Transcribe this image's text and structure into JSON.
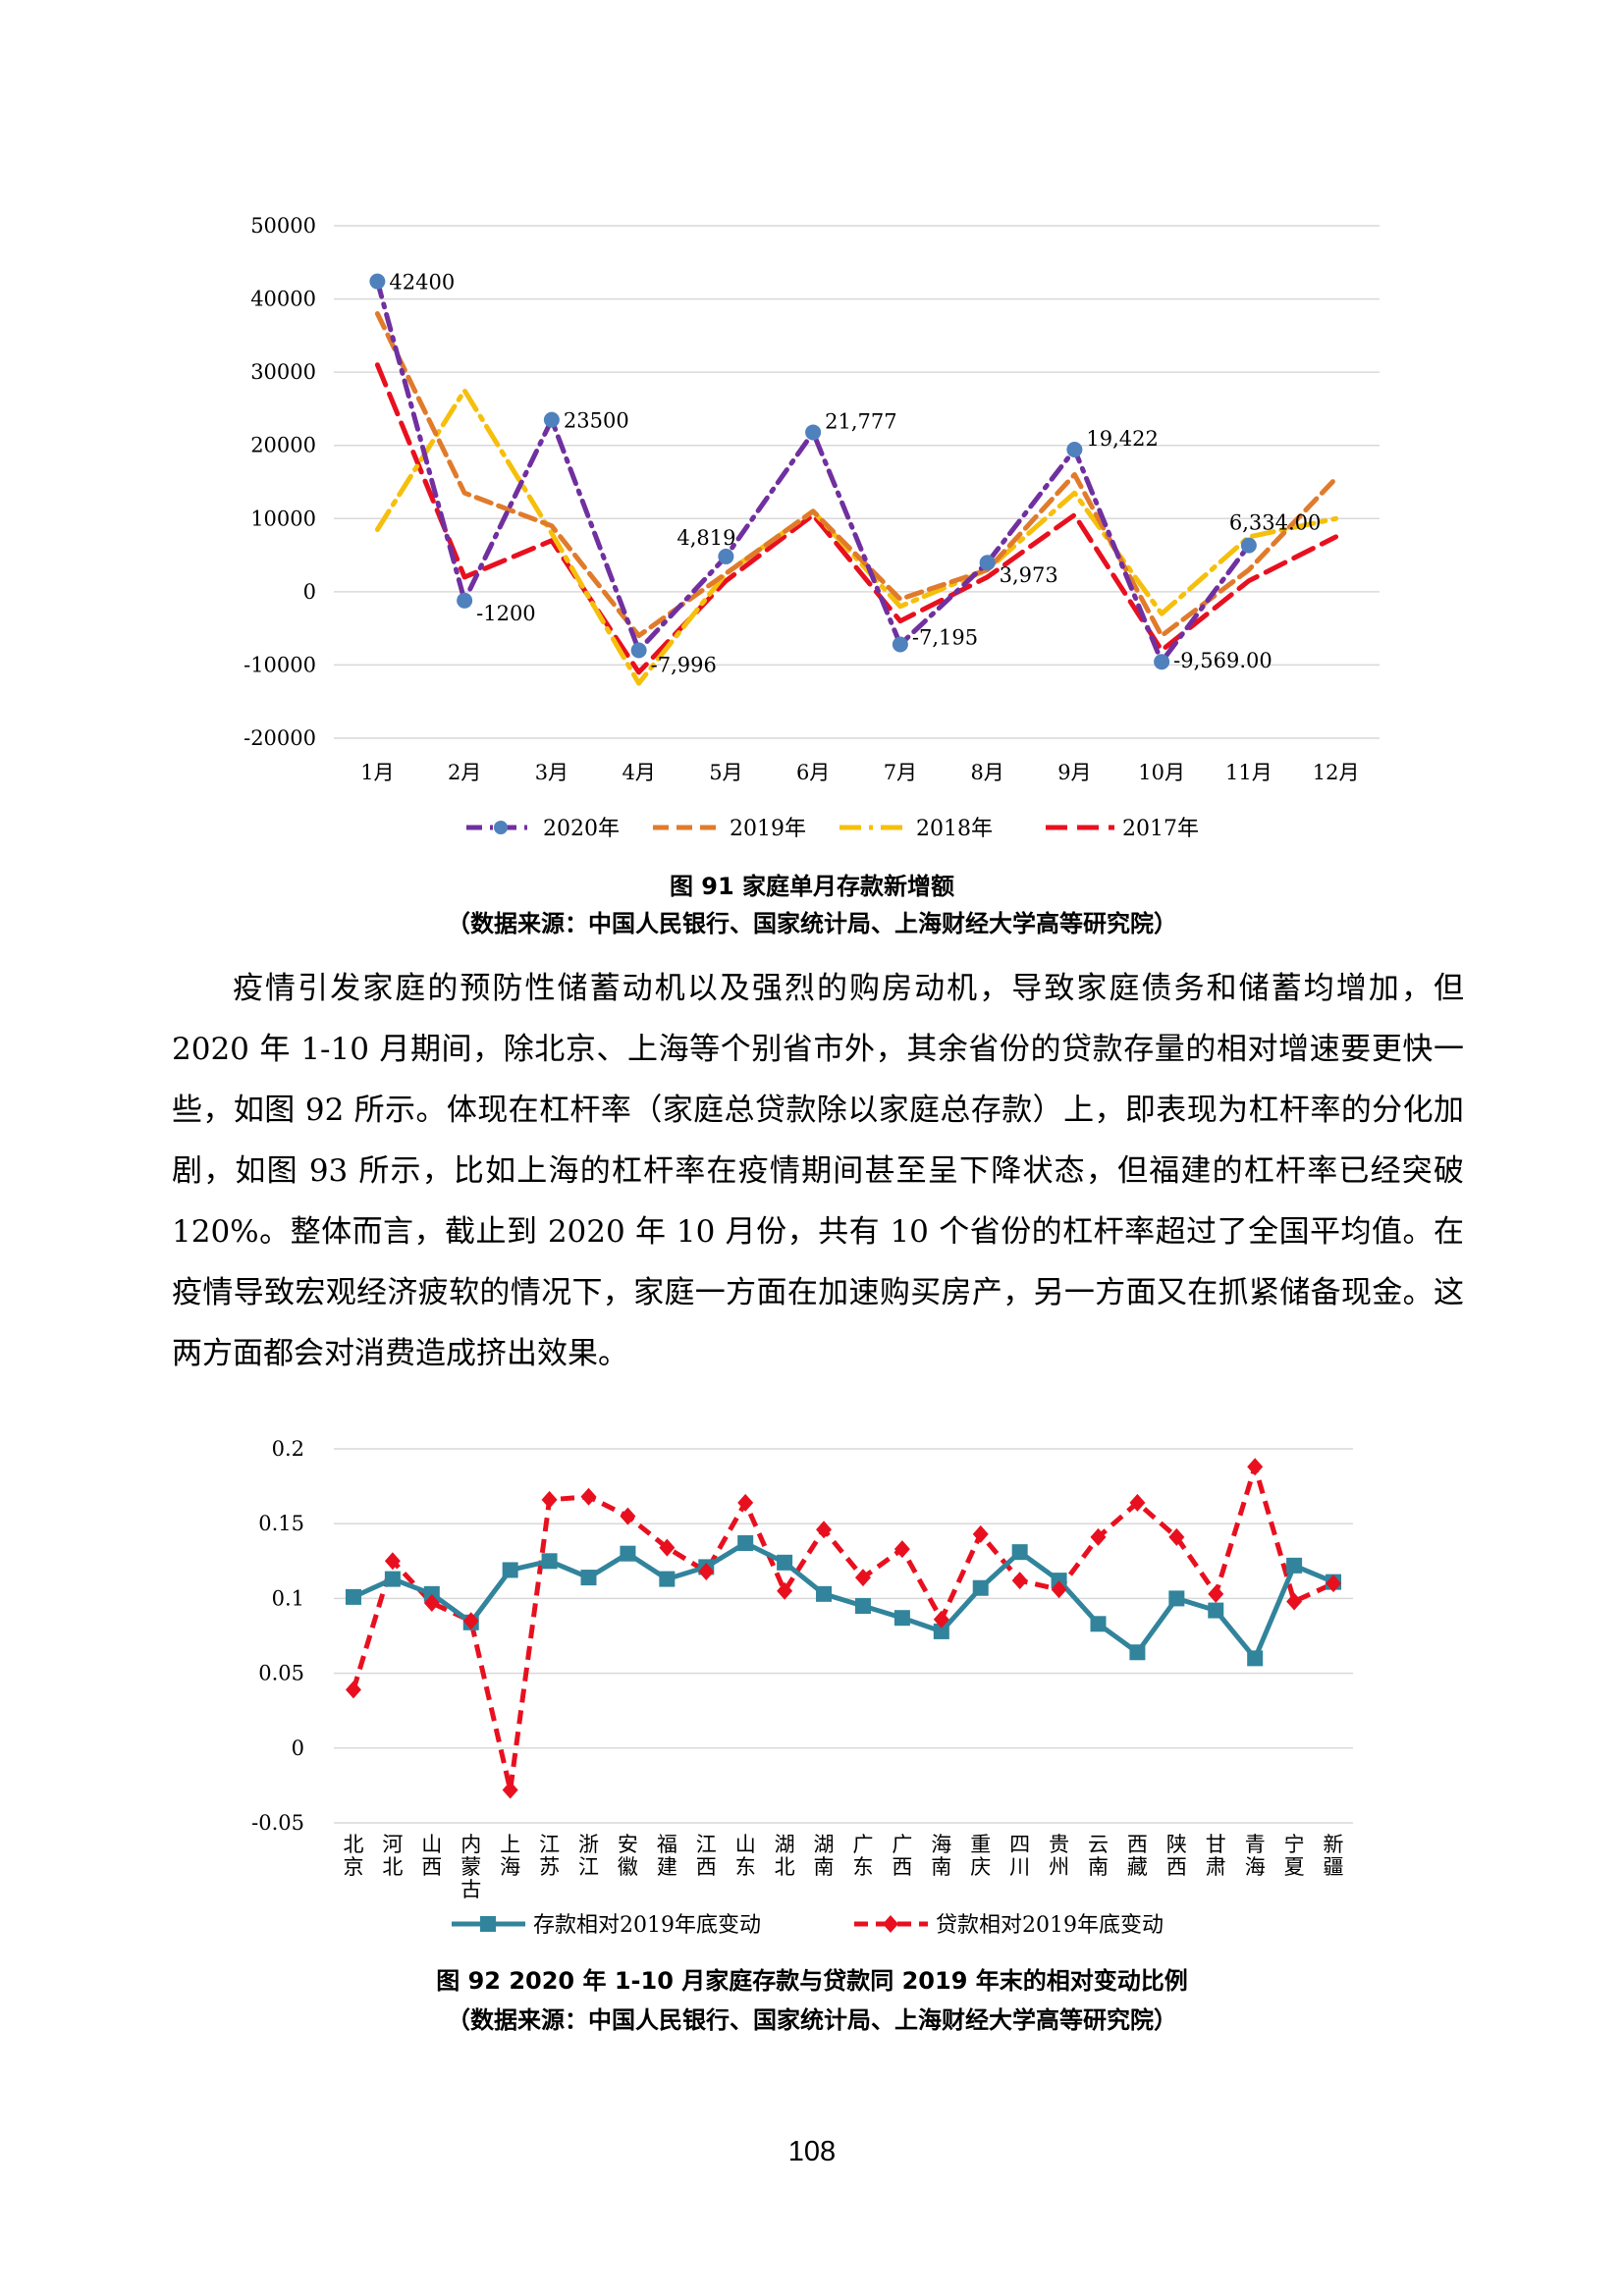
{
  "chart_data": [
    {
      "type": "line",
      "categories": [
        "1月",
        "2月",
        "3月",
        "4月",
        "5月",
        "6月",
        "7月",
        "8月",
        "9月",
        "10月",
        "11月",
        "12月"
      ],
      "ylim": [
        -20000,
        50000
      ],
      "yticks": [
        "50000",
        "40000",
        "30000",
        "20000",
        "10000",
        "0",
        "-10000",
        "-20000"
      ],
      "legend_position": "bottom",
      "grid": true,
      "series": [
        {
          "name": "2020年",
          "color": "#7030a0",
          "marker_color": "#4f81bd",
          "values": [
            42400,
            -1200,
            23500,
            -7996,
            4819,
            21777,
            -7195,
            3973,
            19422,
            -9569,
            6334,
            null
          ],
          "labels": [
            "42400",
            "-1200",
            "23500",
            "-7,996",
            "4,819",
            "21,777",
            "-7,195",
            "3,973",
            "19,422",
            "-9,569.00",
            "6,334.00",
            ""
          ]
        },
        {
          "name": "2019年",
          "color": "#e07b2c",
          "values": [
            38000,
            13500,
            9000,
            -6000,
            2500,
            11000,
            -1000,
            3000,
            16000,
            -6000,
            3000,
            15500
          ]
        },
        {
          "name": "2018年",
          "color": "#f5bf0c",
          "values": [
            8500,
            27500,
            8000,
            -12500,
            2500,
            11000,
            -2000,
            3000,
            13500,
            -3000,
            7500,
            10000
          ]
        },
        {
          "name": "2017年",
          "color": "#e8101f",
          "values": [
            31000,
            2000,
            7000,
            -11000,
            1500,
            10500,
            -4000,
            2000,
            10500,
            -8000,
            1500,
            7500
          ]
        }
      ]
    },
    {
      "type": "line",
      "categories": [
        "北京",
        "河北",
        "山西",
        "内蒙古",
        "上海",
        "江苏",
        "浙江",
        "安徽",
        "福建",
        "江西",
        "山东",
        "湖北",
        "湖南",
        "广东",
        "广西",
        "海南",
        "重庆",
        "四川",
        "贵州",
        "云南",
        "西藏",
        "陕西",
        "甘肃",
        "青海",
        "宁夏",
        "新疆"
      ],
      "ylim": [
        -0.05,
        0.2
      ],
      "yticks": [
        "0.2",
        "0.15",
        "0.1",
        "0.05",
        "0",
        "-0.05"
      ],
      "legend_position": "bottom",
      "grid": true,
      "series": [
        {
          "name": "存款相对2019年底变动",
          "color": "#31849b",
          "values": [
            0.101,
            0.113,
            0.103,
            0.084,
            0.119,
            0.125,
            0.114,
            0.13,
            0.113,
            0.121,
            0.137,
            0.124,
            0.103,
            0.095,
            0.087,
            0.078,
            0.107,
            0.131,
            0.112,
            0.083,
            0.064,
            0.1,
            0.092,
            0.06,
            0.122,
            0.111
          ]
        },
        {
          "name": "贷款相对2019年底变动",
          "color": "#e8101f",
          "values": [
            0.039,
            0.125,
            0.097,
            0.085,
            -0.028,
            0.166,
            0.168,
            0.155,
            0.134,
            0.118,
            0.164,
            0.105,
            0.146,
            0.114,
            0.133,
            0.086,
            0.143,
            0.112,
            0.106,
            0.141,
            0.164,
            0.141,
            0.103,
            0.188,
            0.098,
            0.11
          ]
        }
      ]
    }
  ],
  "captions": {
    "fig91_title": "图 91 家庭单月存款新增额",
    "fig91_source": "（数据来源：中国人民银行、国家统计局、上海财经大学高等研究院）",
    "fig92_title": "图 92 2020 年 1-10 月家庭存款与贷款同 2019 年末的相对变动比例",
    "fig92_source": "（数据来源：中国人民银行、国家统计局、上海财经大学高等研究院）"
  },
  "paragraph": "疫情引发家庭的预防性储蓄动机以及强烈的购房动机，导致家庭债务和储蓄均增加，但 2020 年 1-10 月期间，除北京、上海等个别省市外，其余省份的贷款存量的相对增速要更快一些，如图 92 所示。体现在杠杆率（家庭总贷款除以家庭总存款）上，即表现为杠杆率的分化加剧，如图 93 所示，比如上海的杠杆率在疫情期间甚至呈下降状态，但福建的杠杆率已经突破 120%。整体而言，截止到 2020 年 10 月份，共有 10 个省份的杠杆率超过了全国平均值。在疫情导致宏观经济疲软的情况下，家庭一方面在加速购买房产，另一方面又在抓紧储备现金。这两方面都会对消费造成挤出效果。",
  "page_number": "108"
}
